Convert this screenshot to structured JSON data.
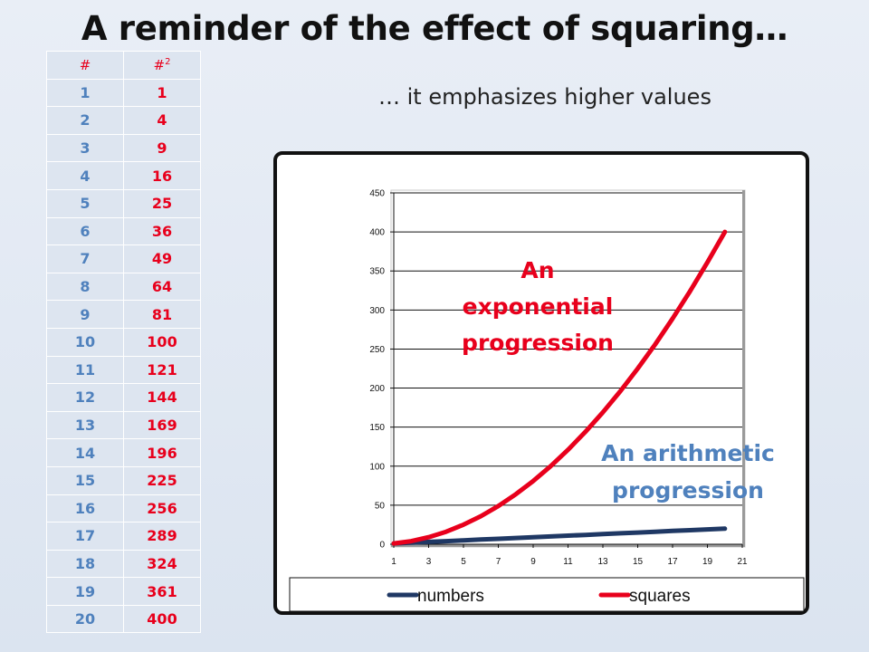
{
  "title": "A reminder of the effect of squaring…",
  "subtitle": "… it emphasizes higher values",
  "table": {
    "header_number": "#",
    "header_square_base": "#",
    "header_square_exp": "2",
    "rows": [
      {
        "n": "1",
        "sq": "1"
      },
      {
        "n": "2",
        "sq": "4"
      },
      {
        "n": "3",
        "sq": "9"
      },
      {
        "n": "4",
        "sq": "16"
      },
      {
        "n": "5",
        "sq": "25"
      },
      {
        "n": "6",
        "sq": "36"
      },
      {
        "n": "7",
        "sq": "49"
      },
      {
        "n": "8",
        "sq": "64"
      },
      {
        "n": "9",
        "sq": "81"
      },
      {
        "n": "10",
        "sq": "100"
      },
      {
        "n": "11",
        "sq": "121"
      },
      {
        "n": "12",
        "sq": "144"
      },
      {
        "n": "13",
        "sq": "169"
      },
      {
        "n": "14",
        "sq": "196"
      },
      {
        "n": "15",
        "sq": "225"
      },
      {
        "n": "16",
        "sq": "256"
      },
      {
        "n": "17",
        "sq": "289"
      },
      {
        "n": "18",
        "sq": "324"
      },
      {
        "n": "19",
        "sq": "361"
      },
      {
        "n": "20",
        "sq": "400"
      }
    ]
  },
  "colors": {
    "numbers": "#1f3864",
    "squares": "#e8001c",
    "number_text": "#4f81bd",
    "square_text": "#e8001c"
  },
  "chart_data": {
    "type": "line",
    "x": [
      1,
      2,
      3,
      4,
      5,
      6,
      7,
      8,
      9,
      10,
      11,
      12,
      13,
      14,
      15,
      16,
      17,
      18,
      19,
      20
    ],
    "series": [
      {
        "name": "numbers",
        "color": "#1f3864",
        "values": [
          1,
          2,
          3,
          4,
          5,
          6,
          7,
          8,
          9,
          10,
          11,
          12,
          13,
          14,
          15,
          16,
          17,
          18,
          19,
          20
        ]
      },
      {
        "name": "squares",
        "color": "#e8001c",
        "values": [
          1,
          4,
          9,
          16,
          25,
          36,
          49,
          64,
          81,
          100,
          121,
          144,
          169,
          196,
          225,
          256,
          289,
          324,
          361,
          400
        ]
      }
    ],
    "xlim": [
      1,
      21
    ],
    "ylim": [
      0,
      450
    ],
    "x_ticks": [
      1,
      3,
      5,
      7,
      9,
      11,
      13,
      15,
      17,
      19,
      21
    ],
    "y_ticks": [
      0,
      50,
      100,
      150,
      200,
      250,
      300,
      350,
      400,
      450
    ],
    "grid": "horizontal",
    "legend": "bottom",
    "annotations": [
      {
        "lines": [
          "An",
          "exponential",
          "progression"
        ],
        "color": "#e8001c"
      },
      {
        "lines": [
          "An arithmetic",
          "progression"
        ],
        "color": "#4f81bd"
      }
    ]
  }
}
